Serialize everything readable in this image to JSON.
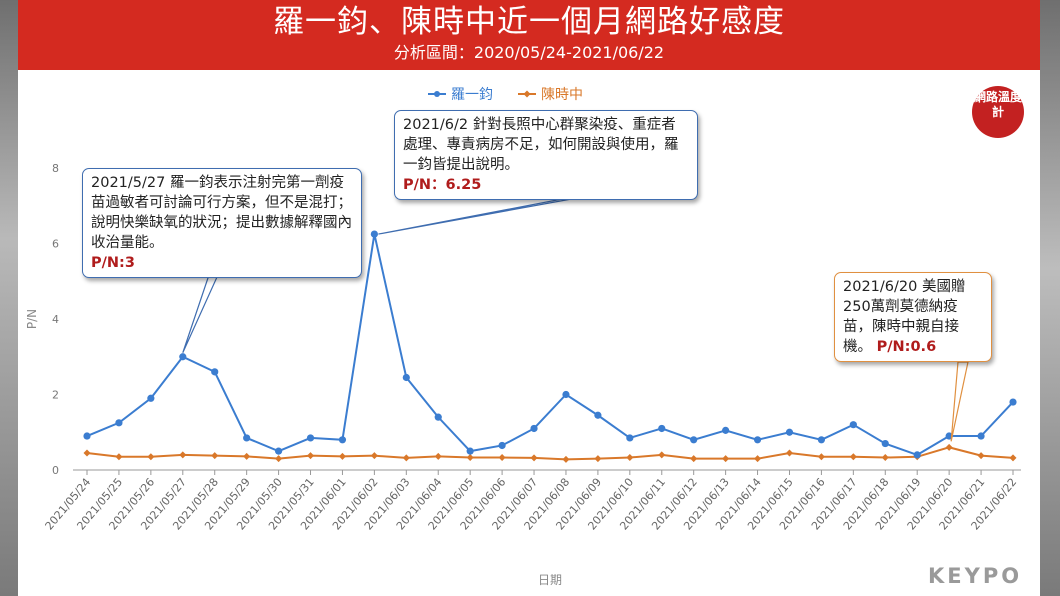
{
  "header": {
    "title": "羅一鈞、陳時中近一個月網路好感度",
    "subtitle": "分析區間：2020/05/24-2021/06/22"
  },
  "badge": {
    "text": "網路溫度計"
  },
  "logo": {
    "text": "KEYPO"
  },
  "annotations": [
    {
      "text": "2021/5/27 羅一鈞表示注射完第一劑疫苗過敏者可討論可行方案，但不是混打；說明快樂缺氧的狀況；提出數據解釋國內收治量能。",
      "pn": "P/N:3"
    },
    {
      "text": "2021/6/2 針對長照中心群聚染疫、重症者處理、專責病房不足，如何開設與使用，羅一鈞皆提出說明。",
      "pn": "P/N：6.25"
    },
    {
      "text": "2021/6/20 美國贈250萬劑莫德納疫苗，陳時中親自接機。",
      "pn": "P/N:0.6"
    }
  ],
  "colors": {
    "header_bg": "#d42a20",
    "series1": "#3b7dd0",
    "series2": "#d9782a",
    "pn_text": "#b01c1c"
  },
  "chart_data": {
    "type": "line",
    "title": "",
    "xlabel": "日期",
    "ylabel": "P/N",
    "ylim": [
      0,
      8
    ],
    "yticks": [
      0,
      2,
      4,
      6,
      8
    ],
    "grid": false,
    "legend": "top",
    "categories": [
      "2021/05/24",
      "2021/05/25",
      "2021/05/26",
      "2021/05/27",
      "2021/05/28",
      "2021/05/29",
      "2021/05/30",
      "2021/05/31",
      "2021/06/01",
      "2021/06/02",
      "2021/06/03",
      "2021/06/04",
      "2021/06/05",
      "2021/06/06",
      "2021/06/07",
      "2021/06/08",
      "2021/06/09",
      "2021/06/10",
      "2021/06/11",
      "2021/06/12",
      "2021/06/13",
      "2021/06/14",
      "2021/06/15",
      "2021/06/16",
      "2021/06/17",
      "2021/06/18",
      "2021/06/19",
      "2021/06/20",
      "2021/06/21",
      "2021/06/22"
    ],
    "series": [
      {
        "name": "羅一鈞",
        "color": "#3b7dd0",
        "values": [
          0.9,
          1.25,
          1.9,
          3.0,
          2.6,
          0.85,
          0.5,
          0.85,
          0.8,
          6.25,
          2.45,
          1.4,
          0.5,
          0.65,
          1.1,
          2.0,
          1.45,
          0.85,
          1.1,
          0.8,
          1.05,
          0.8,
          1.0,
          0.8,
          1.2,
          0.7,
          0.4,
          0.9,
          0.9,
          1.8
        ]
      },
      {
        "name": "陳時中",
        "color": "#d9782a",
        "values": [
          0.45,
          0.35,
          0.35,
          0.4,
          0.38,
          0.36,
          0.3,
          0.38,
          0.36,
          0.38,
          0.32,
          0.36,
          0.33,
          0.33,
          0.32,
          0.28,
          0.3,
          0.33,
          0.4,
          0.3,
          0.3,
          0.3,
          0.45,
          0.35,
          0.35,
          0.33,
          0.35,
          0.6,
          0.38,
          0.32
        ]
      }
    ]
  }
}
